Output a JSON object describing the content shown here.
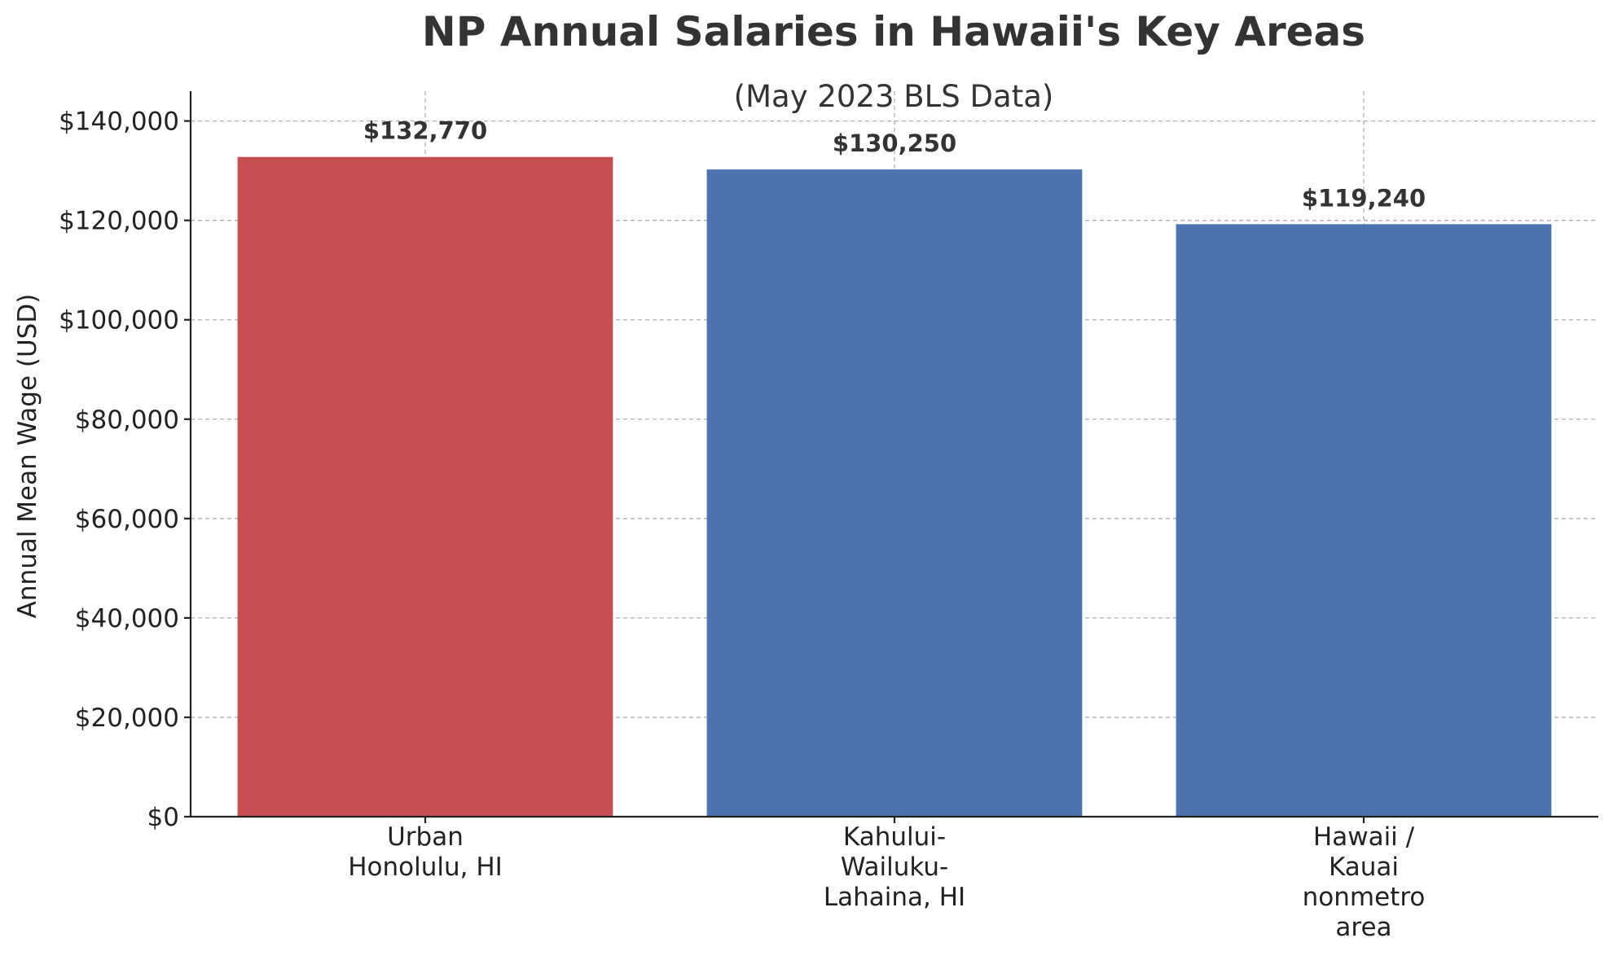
{
  "chart_data": {
    "type": "bar",
    "title": "NP Annual Salaries in Hawaii's Key Areas",
    "subtitle": "(May 2023 BLS Data)",
    "xlabel": "",
    "ylabel": "Annual Mean Wage (USD)",
    "categories": [
      [
        "Urban",
        "Honolulu, HI"
      ],
      [
        "Kahului-",
        "Wailuku-",
        "Lahaina, HI"
      ],
      [
        "Hawaii /",
        "Kauai",
        "nonmetro",
        "area"
      ]
    ],
    "values": [
      132770,
      130250,
      119240
    ],
    "value_labels": [
      "$132,770",
      "$130,250",
      "$119,240"
    ],
    "bar_colors": [
      "#c44e52",
      "#4c72b0",
      "#4c72b0"
    ],
    "ylim": [
      0,
      146000
    ],
    "yticks": [
      0,
      20000,
      40000,
      60000,
      80000,
      100000,
      120000,
      140000
    ],
    "ytick_labels": [
      "$0",
      "$20,000",
      "$40,000",
      "$60,000",
      "$80,000",
      "$100,000",
      "$120,000",
      "$140,000"
    ],
    "grid": true,
    "legend": "none"
  }
}
